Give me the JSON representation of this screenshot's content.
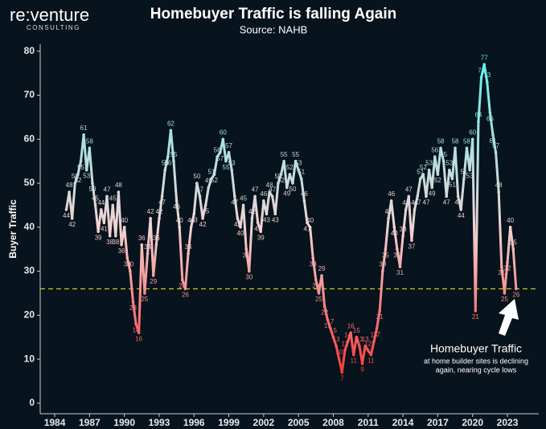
{
  "brand": {
    "name": "re:venture",
    "tagline": "CONSULTING"
  },
  "chart_data": {
    "type": "line",
    "title": "Homebuyer Traffic is falling Again",
    "subtitle": "Source: NAHB",
    "y_label": "Buyer Traffic",
    "x": [
      1985,
      1985.25,
      1985.5,
      1985.75,
      1986,
      1986.25,
      1986.5,
      1986.75,
      1987,
      1987.25,
      1987.5,
      1987.75,
      1988,
      1988.25,
      1988.5,
      1988.75,
      1989,
      1989.25,
      1989.5,
      1989.75,
      1990,
      1990.25,
      1990.5,
      1990.75,
      1991,
      1991.25,
      1991.5,
      1991.75,
      1992,
      1992.25,
      1992.5,
      1992.75,
      1993,
      1993.25,
      1993.5,
      1993.75,
      1994,
      1994.25,
      1994.5,
      1994.75,
      1995,
      1995.25,
      1995.5,
      1995.75,
      1996,
      1996.25,
      1996.5,
      1996.75,
      1997,
      1997.25,
      1997.5,
      1997.75,
      1998,
      1998.25,
      1998.5,
      1998.75,
      1999,
      1999.25,
      1999.5,
      1999.75,
      2000,
      2000.25,
      2000.5,
      2000.75,
      2001,
      2001.25,
      2001.5,
      2001.75,
      2002,
      2002.25,
      2002.5,
      2002.75,
      2003,
      2003.25,
      2003.5,
      2003.75,
      2004,
      2004.25,
      2004.5,
      2004.75,
      2005,
      2005.25,
      2005.5,
      2005.75,
      2006,
      2006.25,
      2006.5,
      2006.75,
      2007,
      2007.25,
      2007.5,
      2007.75,
      2008,
      2008.25,
      2008.5,
      2008.75,
      2009,
      2009.25,
      2009.5,
      2009.75,
      2010,
      2010.25,
      2010.5,
      2010.75,
      2011,
      2011.25,
      2011.5,
      2011.75,
      2012,
      2012.25,
      2012.5,
      2012.75,
      2013,
      2013.25,
      2013.5,
      2013.75,
      2014,
      2014.25,
      2014.5,
      2014.75,
      2015,
      2015.25,
      2015.5,
      2015.75,
      2016,
      2016.25,
      2016.5,
      2016.75,
      2017,
      2017.25,
      2017.5,
      2017.75,
      2018,
      2018.25,
      2018.5,
      2018.75,
      2019,
      2019.25,
      2019.5,
      2019.75,
      2020,
      2020.25,
      2020.5,
      2020.75,
      2021,
      2021.25,
      2021.5,
      2021.75,
      2022,
      2022.25,
      2022.5,
      2022.75,
      2023,
      2023.25,
      2023.5,
      2023.75
    ],
    "values": [
      44,
      48,
      42,
      50,
      52,
      55,
      61,
      53,
      58,
      50,
      45,
      39,
      44,
      41,
      47,
      38,
      45,
      38,
      48,
      36,
      40,
      33,
      30,
      23,
      18,
      16,
      36,
      25,
      34,
      42,
      29,
      36,
      42,
      47,
      53,
      56,
      62,
      55,
      46,
      40,
      28,
      26,
      34,
      40,
      43,
      50,
      47,
      42,
      45,
      49,
      51,
      52,
      56,
      57,
      60,
      55,
      57,
      53,
      47,
      42,
      40,
      45,
      35,
      30,
      42,
      47,
      41,
      39,
      46,
      43,
      48,
      47,
      43,
      50,
      52,
      55,
      49,
      52,
      50,
      55,
      53,
      51,
      46,
      41,
      40,
      33,
      28,
      25,
      29,
      22,
      19,
      17,
      15,
      13,
      10,
      7,
      12,
      14,
      16,
      11,
      15,
      13,
      9,
      13,
      12,
      11,
      14,
      17,
      21,
      30,
      35,
      42,
      46,
      40,
      35,
      31,
      38,
      44,
      47,
      37,
      44,
      47,
      51,
      52,
      47,
      53,
      49,
      56,
      52,
      58,
      55,
      47,
      53,
      51,
      58,
      47,
      44,
      51,
      58,
      53,
      60,
      21,
      64,
      74,
      77,
      73,
      66,
      61,
      57,
      48,
      31,
      25,
      32,
      40,
      35,
      26
    ],
    "color_high": "#5cf0f0",
    "color_mid": "#f2d4d4",
    "color_low": "#ff1a1a",
    "xlim": [
      1982.75,
      2025.7
    ],
    "xticks": [
      1984,
      1987,
      1990,
      1993,
      1996,
      1999,
      2002,
      2005,
      2008,
      2011,
      2014,
      2017,
      2020,
      2023
    ],
    "ylim": [
      -2.4,
      81.6
    ],
    "yticks": [
      0,
      10,
      20,
      30,
      40,
      50,
      60,
      70,
      80
    ],
    "reference_line": {
      "value": 26,
      "color": "#c8c81e"
    },
    "annotation": {
      "title": "Homebuyer Traffic",
      "lines": [
        "at home builder sites is declining",
        "again, nearing cycle lows"
      ]
    }
  }
}
